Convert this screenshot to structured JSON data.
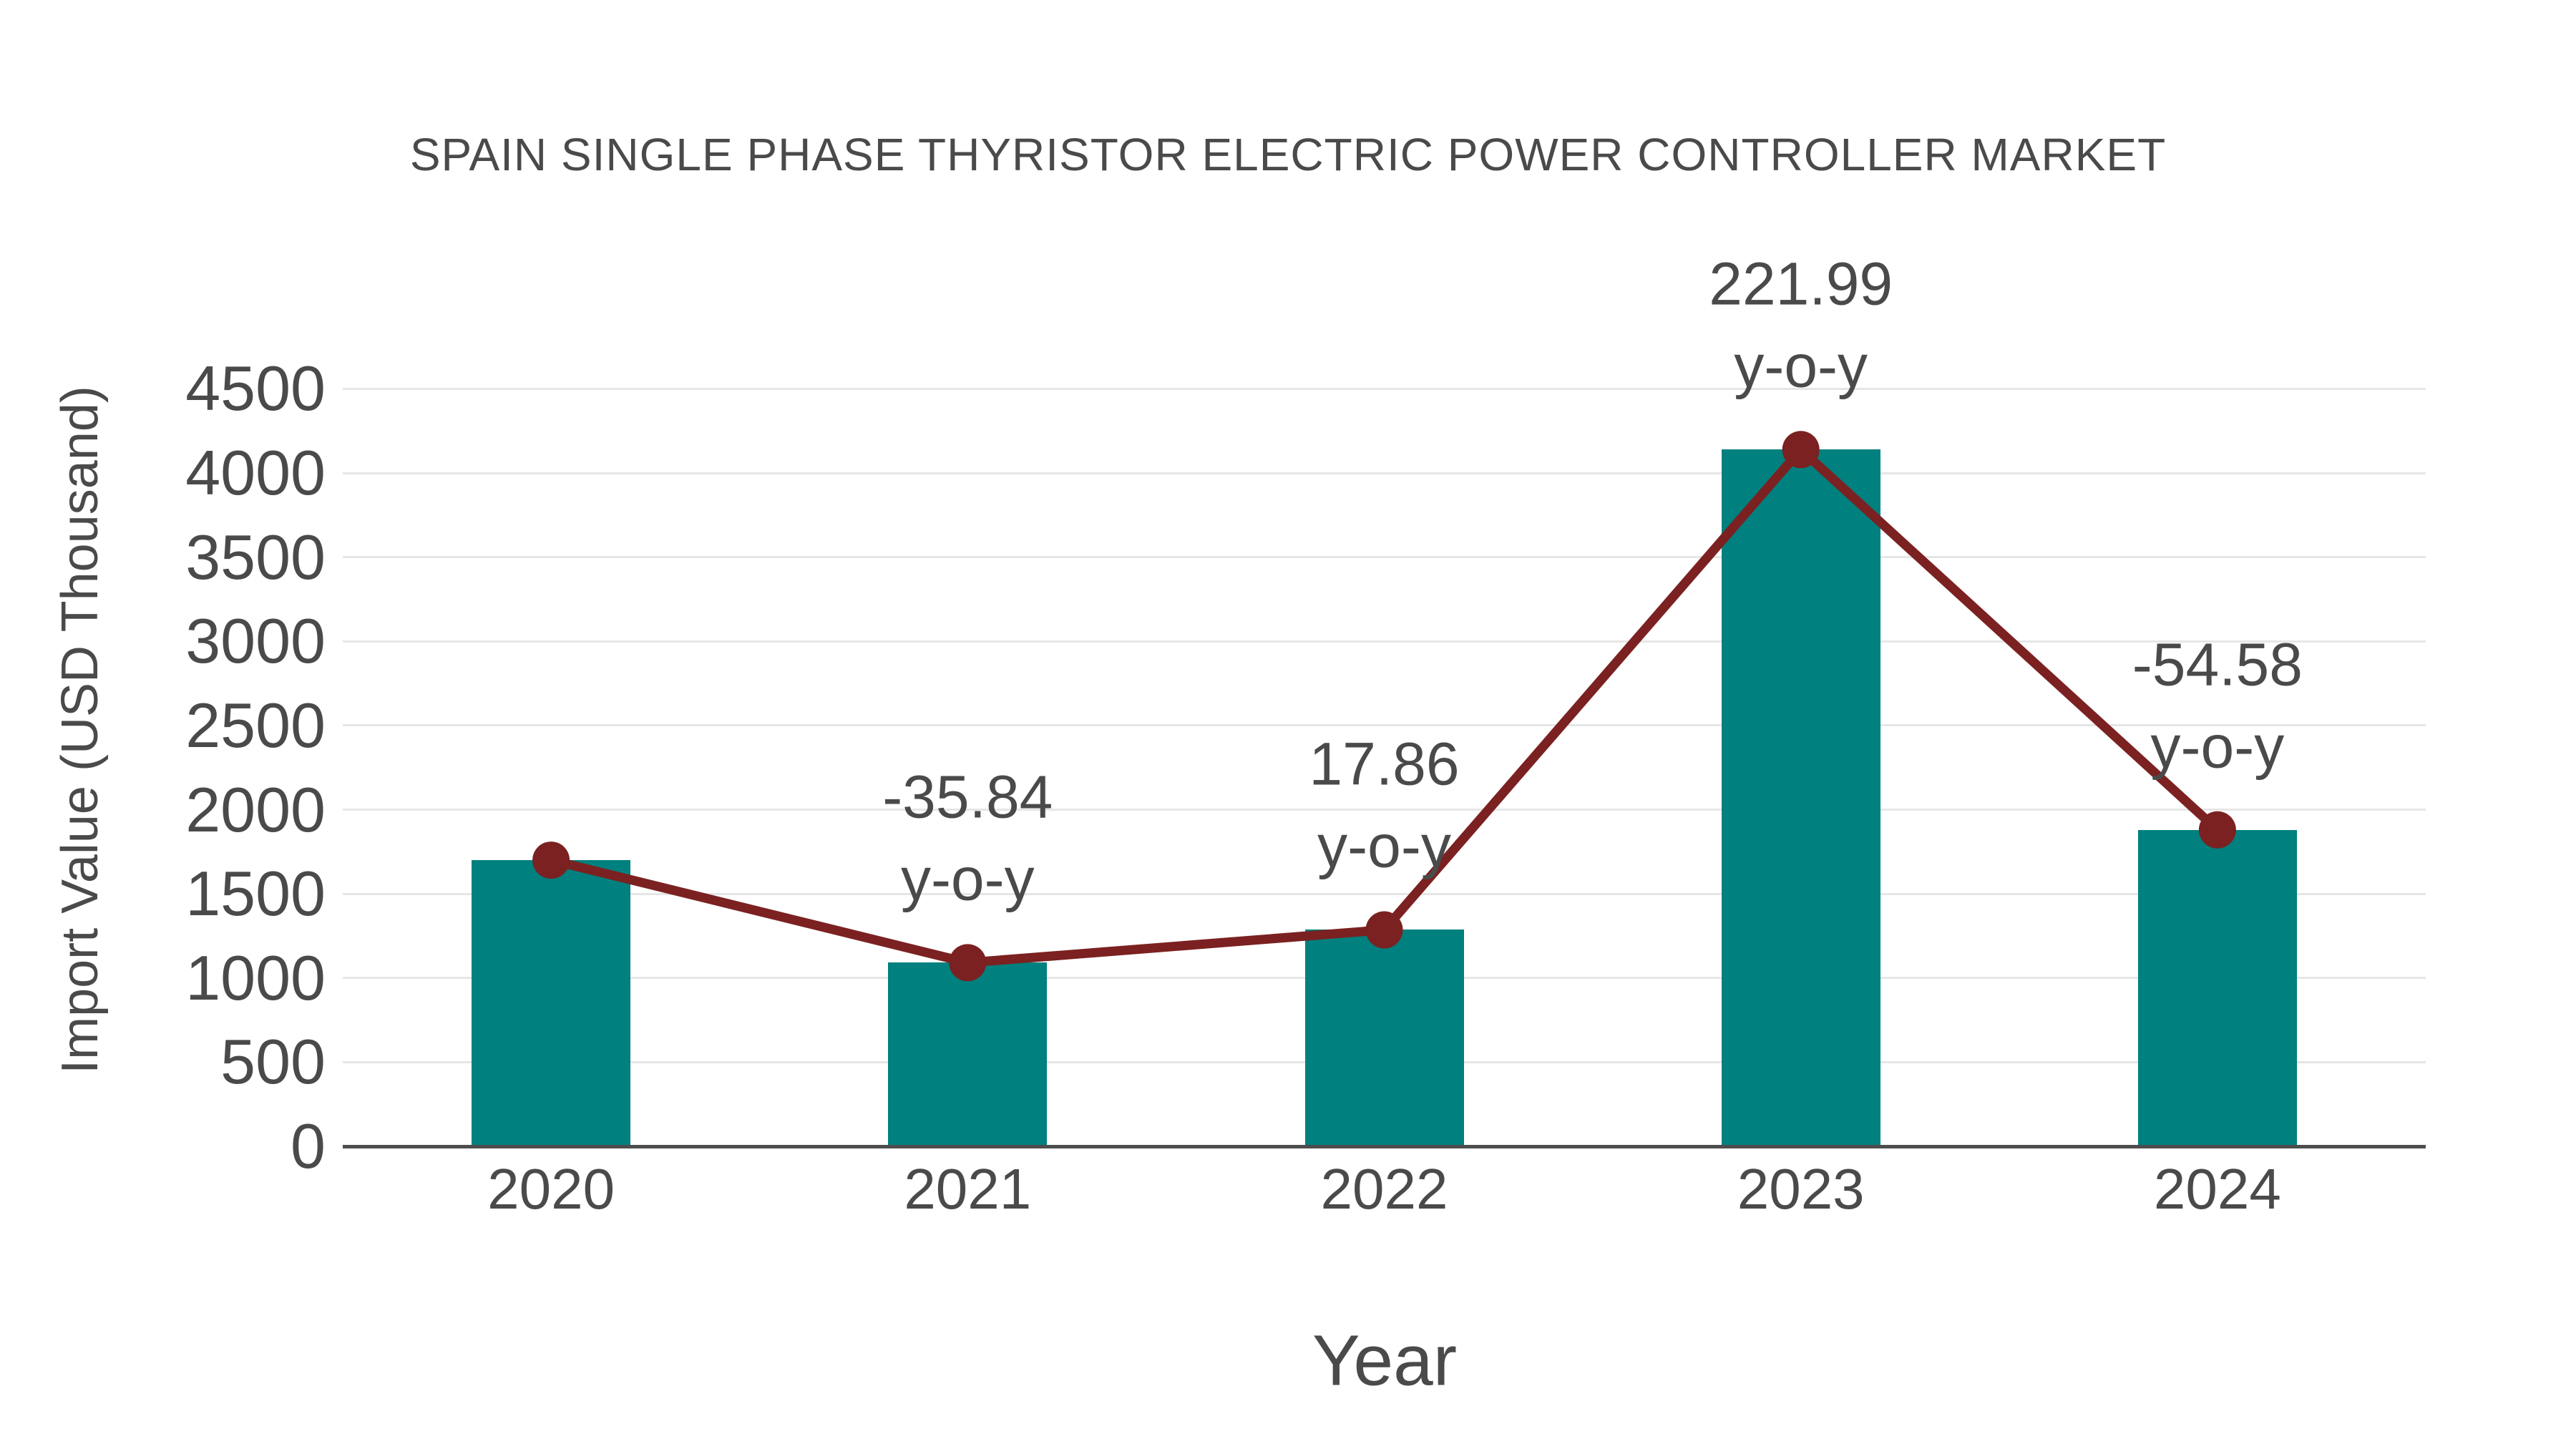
{
  "chart": {
    "title": "SPAIN SINGLE PHASE THYRISTOR ELECTRIC POWER CONTROLLER MARKET",
    "x_axis_title": "Year",
    "y_axis_title": "Import Value (USD Thousand)"
  },
  "chart_data": {
    "type": "bar",
    "overlay_line_on_bar_tops": true,
    "title": "SPAIN SINGLE PHASE THYRISTOR ELECTRIC POWER CONTROLLER MARKET",
    "xlabel": "Year",
    "ylabel": "Import Value (USD Thousand)",
    "categories": [
      "2020",
      "2021",
      "2022",
      "2023",
      "2024"
    ],
    "series": [
      {
        "name": "Import Value (USD Thousand)",
        "type": "bar",
        "values": [
          1700,
          1091,
          1286,
          4139,
          1880
        ]
      },
      {
        "name": "Import Value trend line",
        "type": "line",
        "values": [
          1700,
          1091,
          1286,
          4139,
          1880
        ]
      }
    ],
    "annotations": [
      {
        "category": "2021",
        "value_label": "-35.84",
        "suffix_label": "y-o-y"
      },
      {
        "category": "2022",
        "value_label": "17.86",
        "suffix_label": "y-o-y"
      },
      {
        "category": "2023",
        "value_label": "221.99",
        "suffix_label": "y-o-y"
      },
      {
        "category": "2024",
        "value_label": "-54.58",
        "suffix_label": "y-o-y"
      }
    ],
    "y_ticks": [
      0,
      500,
      1000,
      1500,
      2000,
      2500,
      3000,
      3500,
      4000,
      4500
    ],
    "ylim": [
      0,
      4500
    ],
    "grid": true,
    "legend_position": "none",
    "colors": {
      "bar": "#00807e",
      "line": "#7b2121",
      "marker": "#7b2121",
      "text": "#4a4a4a",
      "gridline": "#e6e6e6",
      "axis_line": "#4d4d4d",
      "background": "#ffffff"
    }
  }
}
